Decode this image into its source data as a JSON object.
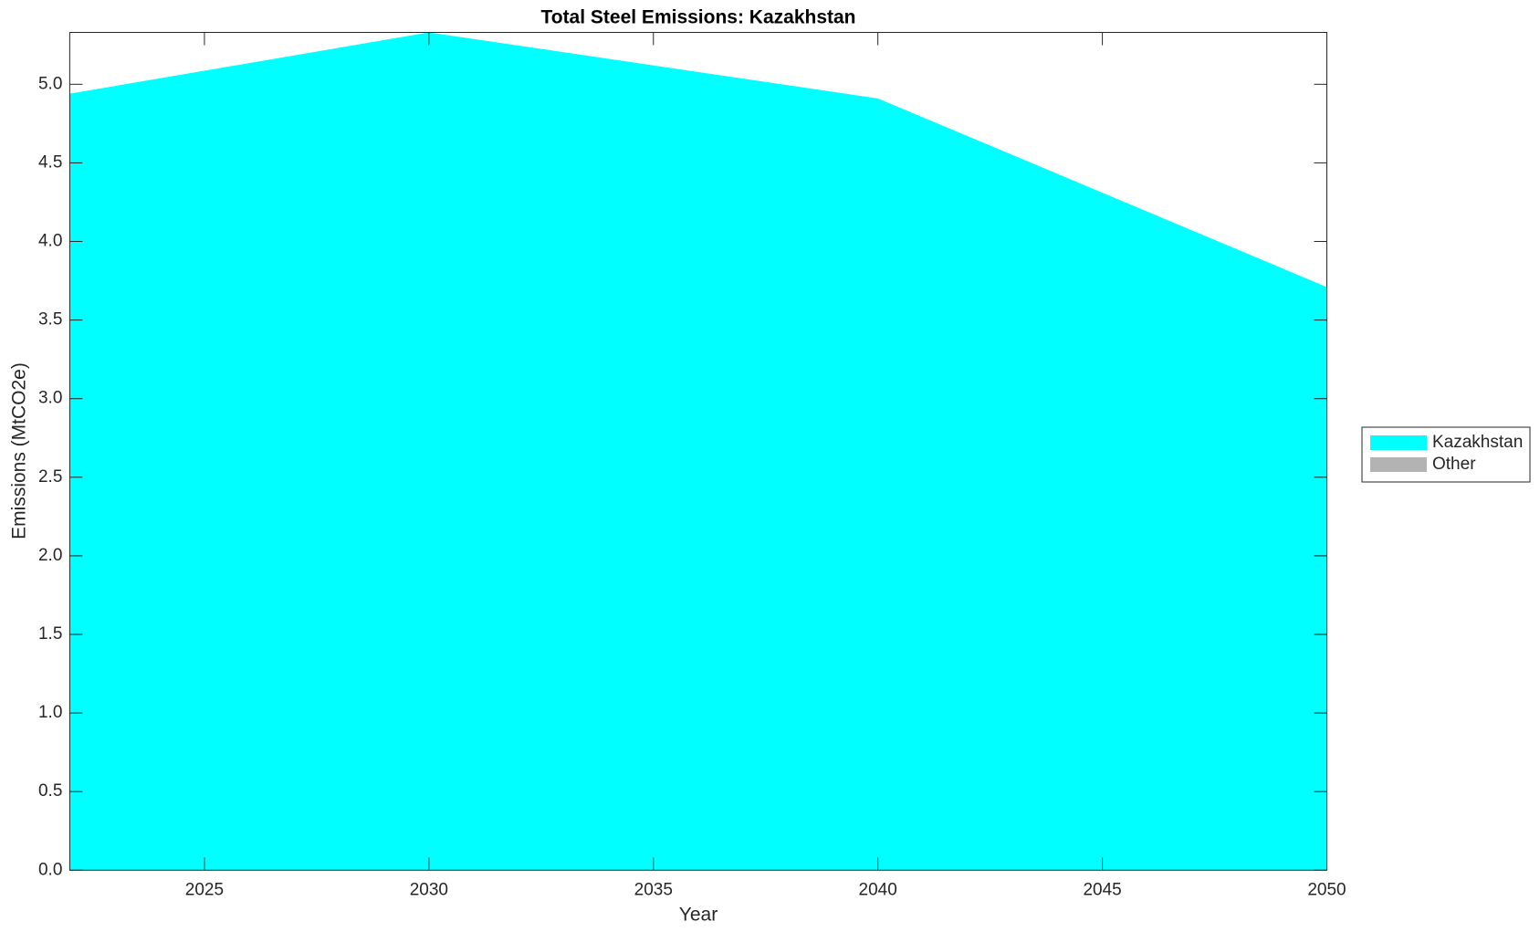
{
  "chart_data": {
    "type": "area",
    "title": "Total Steel Emissions: Kazakhstan",
    "xlabel": "Year",
    "ylabel": "Emissions (MtCO2e)",
    "x": [
      2022,
      2030,
      2040,
      2050
    ],
    "series": [
      {
        "name": "Kazakhstan",
        "color": "#00ffff",
        "values": [
          4.94,
          5.33,
          4.91,
          3.71
        ]
      },
      {
        "name": "Other",
        "color": "#b3b3b3",
        "values": [
          0,
          0,
          0,
          0
        ]
      }
    ],
    "stacked": true,
    "xlim": [
      2022,
      2050
    ],
    "xticks": [
      2025,
      2030,
      2035,
      2040,
      2045,
      2050
    ],
    "ylim": [
      0,
      5.33
    ],
    "yticks": [
      {
        "value": 0,
        "label": "0.0"
      },
      {
        "value": 0.5,
        "label": "0.5"
      },
      {
        "value": 1,
        "label": "1.0"
      },
      {
        "value": 1.5,
        "label": "1.5"
      },
      {
        "value": 2,
        "label": "2.0"
      },
      {
        "value": 2.5,
        "label": "2.5"
      },
      {
        "value": 3,
        "label": "3.0"
      },
      {
        "value": 3.5,
        "label": "3.5"
      },
      {
        "value": 4,
        "label": "4.0"
      },
      {
        "value": 4.5,
        "label": "4.5"
      },
      {
        "value": 5,
        "label": "5.0"
      }
    ],
    "grid": false,
    "legend": "right"
  }
}
